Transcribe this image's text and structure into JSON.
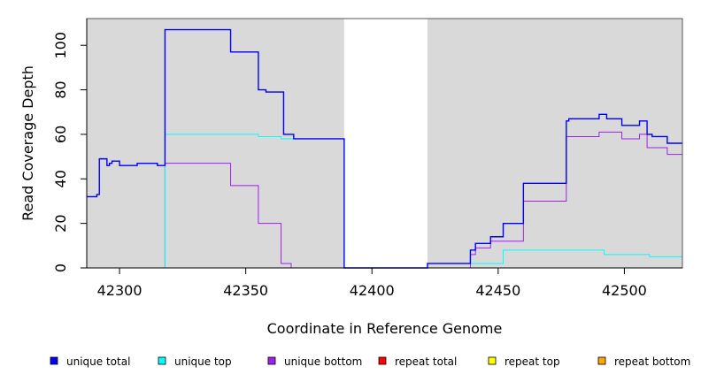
{
  "chart_data": {
    "type": "line",
    "style": "step",
    "xlabel": "Coordinate in Reference Genome",
    "ylabel": "Read Coverage Depth",
    "xlim": [
      42287,
      42523
    ],
    "ylim": [
      0,
      112
    ],
    "x_ticks": [
      42300,
      42350,
      42400,
      42450,
      42500
    ],
    "y_ticks": [
      0,
      20,
      40,
      60,
      80,
      100
    ],
    "background": {
      "shaded_color": "#d9d9d9",
      "unshaded_range": [
        42389,
        42422
      ]
    },
    "legend_position": "bottom",
    "series": [
      {
        "name": "unique total",
        "color": "#0000ff",
        "points": [
          [
            42287,
            32
          ],
          [
            42290,
            32
          ],
          [
            42291,
            33
          ],
          [
            42292,
            49
          ],
          [
            42295,
            46
          ],
          [
            42296,
            47
          ],
          [
            42297,
            48
          ],
          [
            42300,
            46
          ],
          [
            42307,
            47
          ],
          [
            42315,
            46
          ],
          [
            42318,
            107
          ],
          [
            42344,
            97
          ],
          [
            42355,
            80
          ],
          [
            42358,
            79
          ],
          [
            42365,
            60
          ],
          [
            42369,
            58
          ],
          [
            42389,
            0
          ],
          [
            42422,
            2
          ],
          [
            42439,
            8
          ],
          [
            42441,
            11
          ],
          [
            42447,
            14
          ],
          [
            42452,
            20
          ],
          [
            42460,
            38
          ],
          [
            42477,
            66
          ],
          [
            42478,
            67
          ],
          [
            42490,
            69
          ],
          [
            42493,
            67
          ],
          [
            42499,
            64
          ],
          [
            42506,
            66
          ],
          [
            42509,
            60
          ],
          [
            42511,
            59
          ],
          [
            42517,
            56
          ],
          [
            42523,
            56
          ]
        ]
      },
      {
        "name": "unique top",
        "color": "#00ffff",
        "points": [
          [
            42287,
            0
          ],
          [
            42318,
            60
          ],
          [
            42355,
            59
          ],
          [
            42364,
            58
          ],
          [
            42389,
            0
          ],
          [
            42422,
            2
          ],
          [
            42439,
            2
          ],
          [
            42452,
            8
          ],
          [
            42492,
            6
          ],
          [
            42510,
            5
          ],
          [
            42523,
            5
          ]
        ]
      },
      {
        "name": "unique bottom",
        "color": "#a020f0",
        "points": [
          [
            42287,
            0
          ],
          [
            42318,
            47
          ],
          [
            42344,
            37
          ],
          [
            42355,
            20
          ],
          [
            42364,
            2
          ],
          [
            42368,
            0
          ],
          [
            42389,
            0
          ],
          [
            42439,
            6
          ],
          [
            42441,
            9
          ],
          [
            42447,
            12
          ],
          [
            42460,
            30
          ],
          [
            42477,
            59
          ],
          [
            42478,
            59
          ],
          [
            42490,
            61
          ],
          [
            42499,
            58
          ],
          [
            42506,
            60
          ],
          [
            42509,
            54
          ],
          [
            42517,
            51
          ],
          [
            42523,
            51
          ]
        ]
      },
      {
        "name": "repeat total",
        "color": "#ff0000",
        "points": [
          [
            42287,
            0
          ],
          [
            42523,
            0
          ]
        ]
      },
      {
        "name": "repeat top",
        "color": "#ffff00",
        "points": [
          [
            42287,
            0
          ],
          [
            42523,
            0
          ]
        ]
      },
      {
        "name": "repeat bottom",
        "color": "#ffa500",
        "points": [
          [
            42287,
            0
          ],
          [
            42523,
            0
          ]
        ]
      }
    ]
  }
}
